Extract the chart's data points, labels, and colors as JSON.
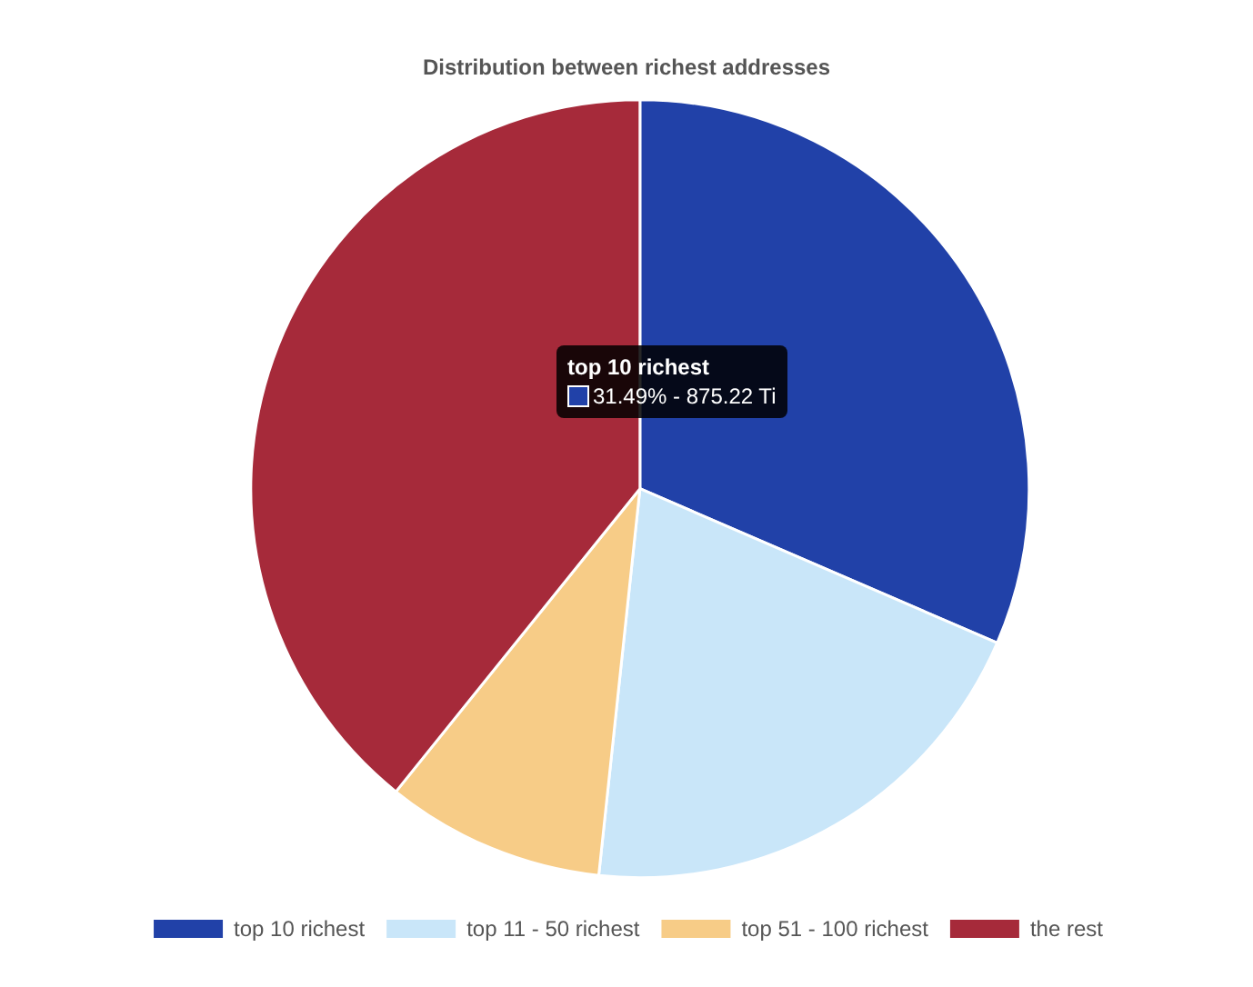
{
  "chart_data": {
    "type": "pie",
    "title": "Distribution between richest addresses",
    "categories": [
      "top 10 richest",
      "top 11 - 50 richest",
      "top 51 - 100 richest",
      "the rest"
    ],
    "values": [
      31.49,
      20.2,
      9.1,
      39.21
    ],
    "colors": [
      "#2141a8",
      "#c9e6f9",
      "#f7cc87",
      "#a62a3a"
    ],
    "legend": "bottom",
    "annotations": [
      "top 10 richest",
      "31.49% - 875.22 Ti"
    ]
  }
}
